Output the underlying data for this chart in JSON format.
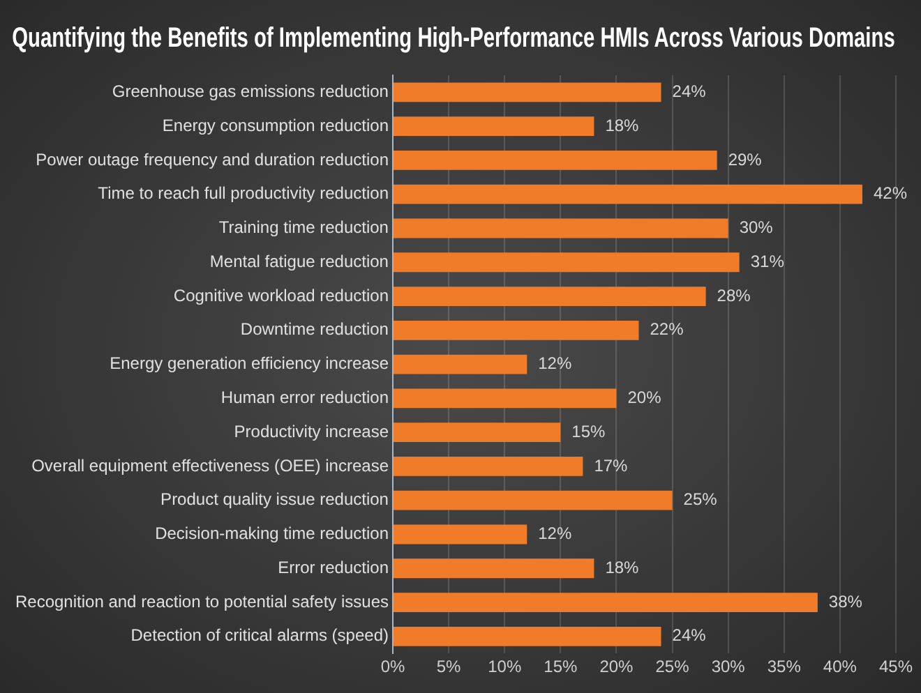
{
  "chart_data": {
    "type": "bar",
    "orientation": "horizontal",
    "title": "Quantifying the Benefits of Implementing High-Performance HMIs Across Various Domains",
    "categories": [
      "Greenhouse gas emissions reduction",
      "Energy consumption reduction",
      "Power outage frequency and duration reduction",
      "Time to reach full productivity reduction",
      "Training time reduction",
      "Mental fatigue reduction",
      "Cognitive workload reduction",
      "Downtime reduction",
      "Energy generation efficiency increase",
      "Human error reduction",
      "Productivity increase",
      "Overall equipment effectiveness (OEE) increase",
      "Product quality issue reduction",
      "Decision-making time reduction",
      "Error reduction",
      "Recognition and reaction to potential safety issues",
      "Detection of critical alarms (speed)"
    ],
    "values": [
      24,
      18,
      29,
      42,
      30,
      31,
      28,
      22,
      12,
      20,
      15,
      17,
      25,
      12,
      18,
      38,
      24
    ],
    "value_labels": [
      "24%",
      "18%",
      "29%",
      "42%",
      "30%",
      "31%",
      "28%",
      "22%",
      "12%",
      "20%",
      "15%",
      "17%",
      "25%",
      "12%",
      "18%",
      "38%",
      "24%"
    ],
    "color": "#f07c2a",
    "xlim": [
      0,
      45
    ],
    "xticks": [
      {
        "value": 0,
        "label": "0%"
      },
      {
        "value": 5,
        "label": "5%"
      },
      {
        "value": 10,
        "label": "10%"
      },
      {
        "value": 15,
        "label": "15%"
      },
      {
        "value": 20,
        "label": "20%"
      },
      {
        "value": 25,
        "label": "25%"
      },
      {
        "value": 30,
        "label": "30%"
      },
      {
        "value": 35,
        "label": "35%"
      },
      {
        "value": 40,
        "label": "40%"
      },
      {
        "value": 45,
        "label": "45%"
      }
    ],
    "grid": "x"
  }
}
